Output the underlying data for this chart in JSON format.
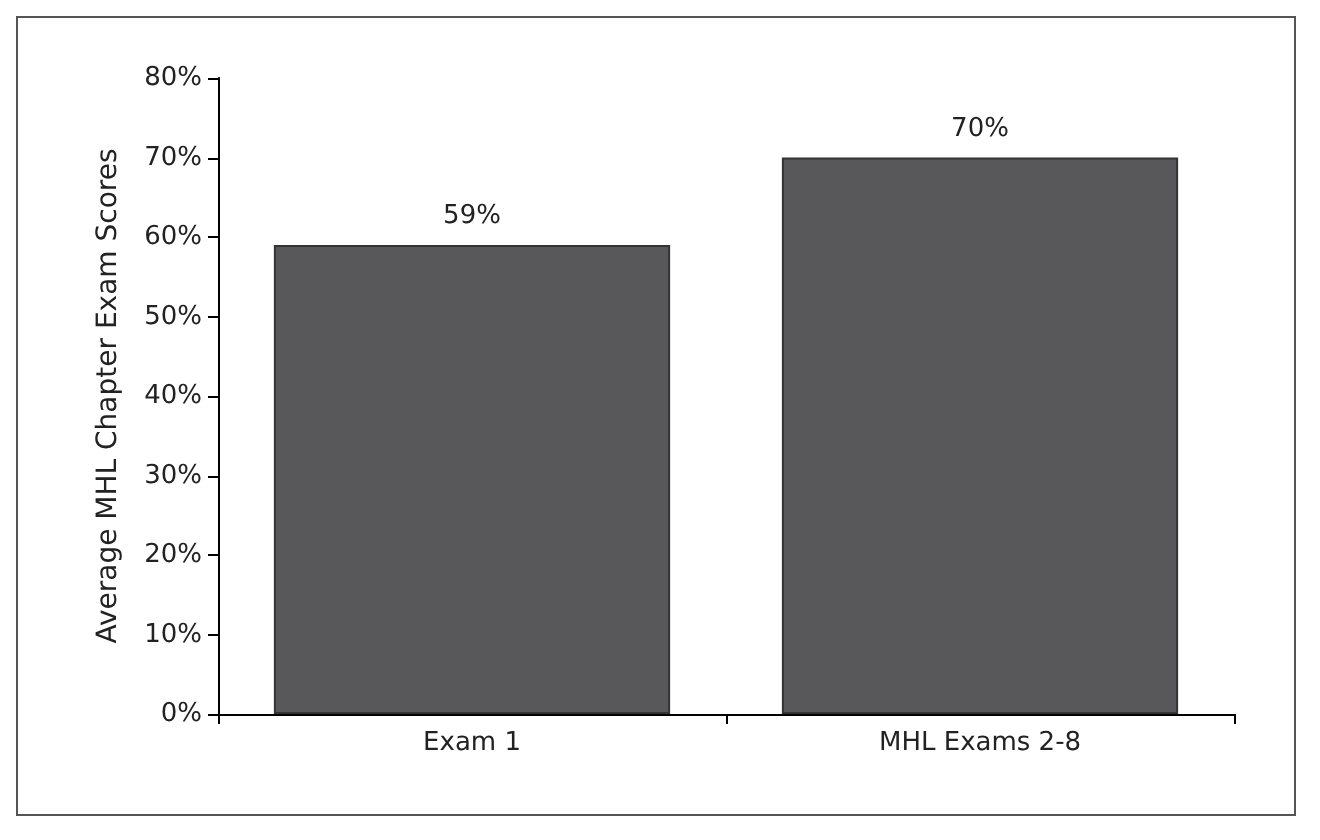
{
  "chart_data": {
    "type": "bar",
    "ylabel": "Average MHL Chapter Exam Scores",
    "categories": [
      "Exam 1",
      "MHL Exams 2-8"
    ],
    "values": [
      59,
      70
    ],
    "color": "#58585a",
    "value_labels": [
      "59%",
      "70%"
    ],
    "ylim": [
      0,
      80
    ],
    "yticks": [
      {
        "value": 0,
        "label": "0%"
      },
      {
        "value": 10,
        "label": "10%"
      },
      {
        "value": 20,
        "label": "20%"
      },
      {
        "value": 30,
        "label": "30%"
      },
      {
        "value": 40,
        "label": "40%"
      },
      {
        "value": 50,
        "label": "50%"
      },
      {
        "value": 60,
        "label": "60%"
      },
      {
        "value": 70,
        "label": "70%"
      },
      {
        "value": 80,
        "label": "80%"
      }
    ],
    "grid": false
  }
}
